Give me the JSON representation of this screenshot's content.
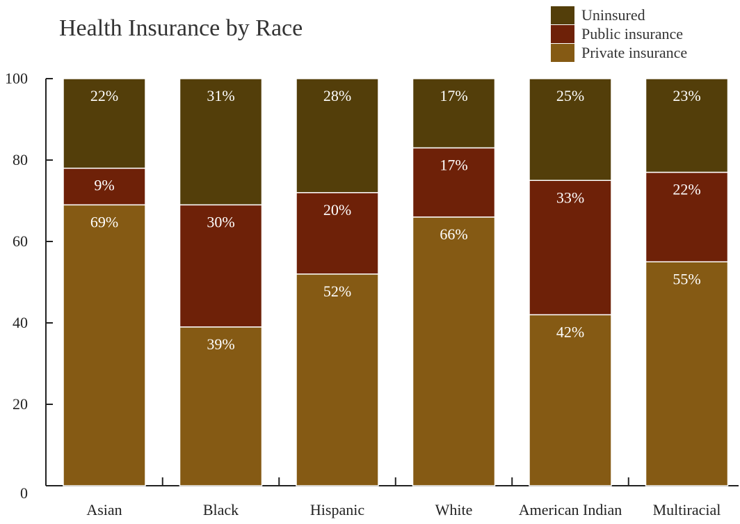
{
  "chart_data": {
    "type": "bar",
    "stacked": true,
    "title": "Health Insurance by Race",
    "xlabel": "",
    "ylabel": "",
    "ylim": [
      0,
      100
    ],
    "yticks": [
      0,
      20,
      40,
      60,
      80,
      100
    ],
    "categories": [
      "Asian",
      "Black",
      "Hispanic",
      "White",
      "American Indian",
      "Multiracial"
    ],
    "series": [
      {
        "name": "Private insurance",
        "color": "#855a14",
        "values": [
          69,
          39,
          52,
          66,
          42,
          55
        ],
        "labels": [
          "69%",
          "39%",
          "52%",
          "66%",
          "42%",
          "55%"
        ]
      },
      {
        "name": "Public insurance",
        "color": "#6e2108",
        "values": [
          9,
          30,
          20,
          17,
          33,
          22
        ],
        "labels": [
          "9%",
          "30%",
          "20%",
          "17%",
          "33%",
          "22%"
        ]
      },
      {
        "name": "Uninsured",
        "color": "#533e0a",
        "values": [
          22,
          31,
          28,
          17,
          25,
          23
        ],
        "labels": [
          "22%",
          "31%",
          "28%",
          "17%",
          "25%",
          "23%"
        ]
      }
    ],
    "legend": {
      "placement": "top-right",
      "entries": [
        "Uninsured",
        "Public insurance",
        "Private insurance"
      ]
    },
    "grid": false
  }
}
